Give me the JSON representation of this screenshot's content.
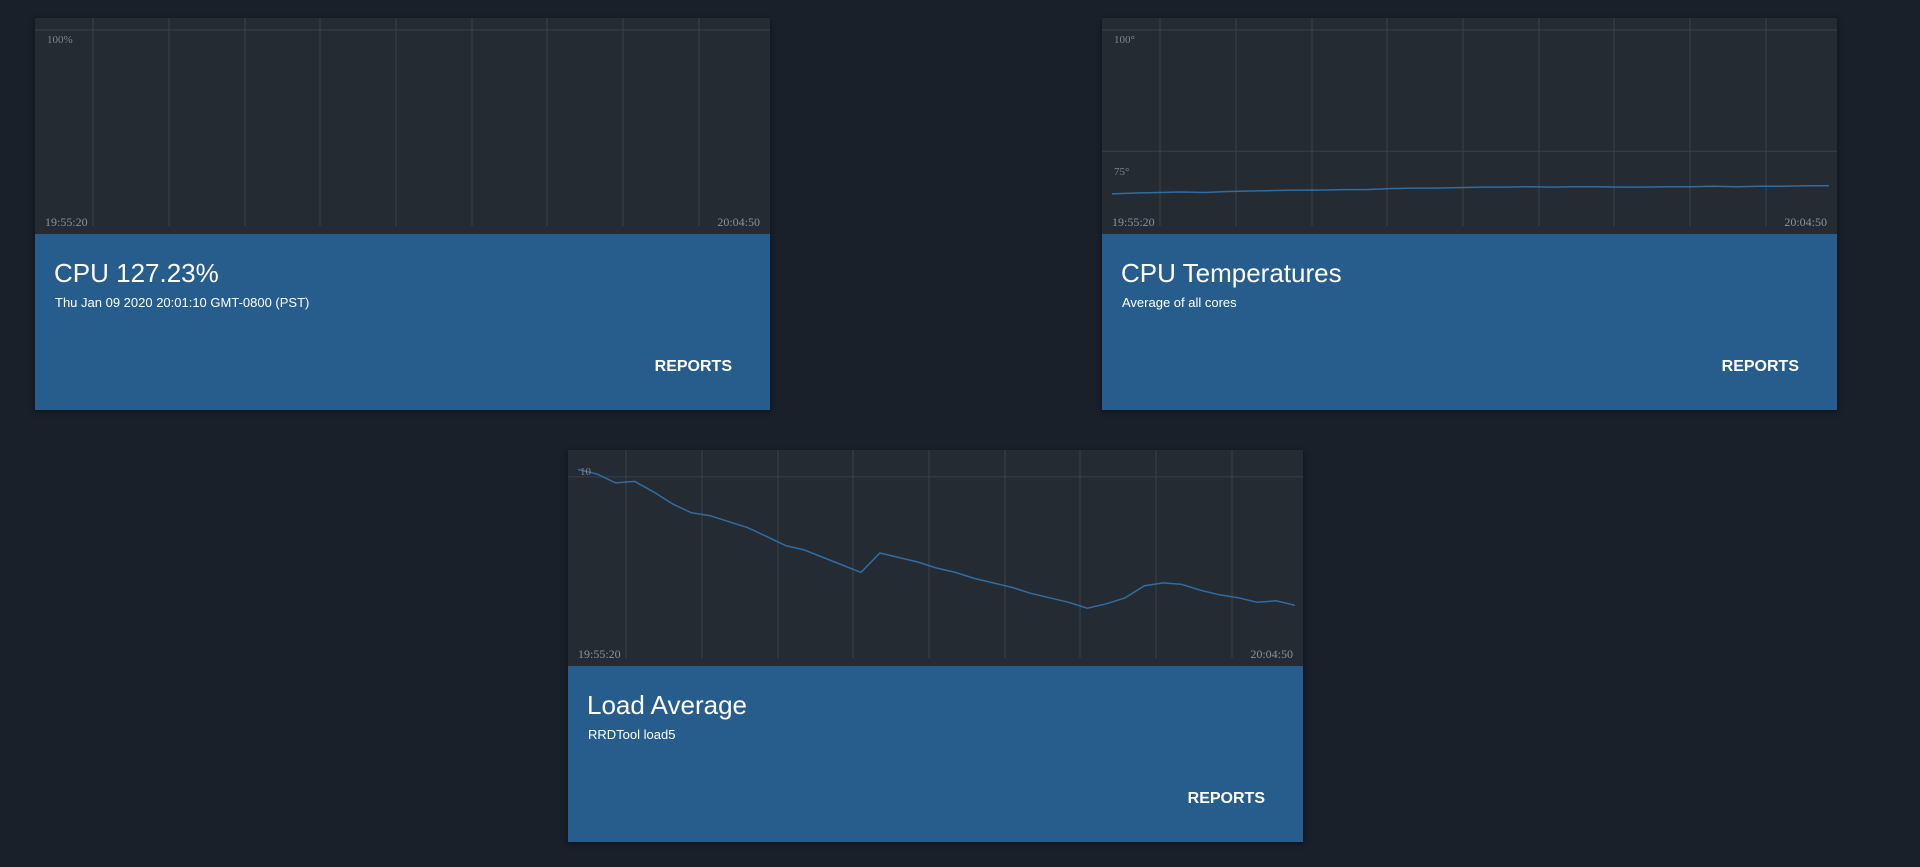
{
  "cards": [
    {
      "id": "cpu",
      "title": "CPU 127.23%",
      "subtitle": "Thu Jan 09 2020 20:01:10 GMT-0800 (PST)",
      "reports_label": "REPORTS",
      "chart": {
        "y_labels": [
          "100%"
        ],
        "x_start": "19:55:20",
        "x_end": "20:04:50"
      }
    },
    {
      "id": "temp",
      "title": "CPU Temperatures",
      "subtitle": "Average of all cores",
      "reports_label": "REPORTS",
      "chart": {
        "y_labels": [
          "100°",
          "75°"
        ],
        "x_start": "19:55:20",
        "x_end": "20:04:50"
      }
    },
    {
      "id": "load",
      "title": "Load Average",
      "subtitle": "RRDTool load5",
      "reports_label": "REPORTS",
      "chart": {
        "y_labels": [
          "10"
        ],
        "x_start": "19:55:20",
        "x_end": "20:04:50"
      }
    }
  ],
  "colors": {
    "background": "#19202a",
    "card": "#265d8c",
    "chart_bg": "#252b33",
    "grid": "#3a414a",
    "line": "#2f6da3"
  },
  "chart_data": [
    {
      "type": "line",
      "title": "",
      "x_ticks": [
        "19:55:20",
        "20:04:50"
      ],
      "y_ticks": [
        100
      ],
      "ylim": [
        0,
        100
      ],
      "series": [
        {
          "values": []
        }
      ]
    },
    {
      "type": "line",
      "title": "",
      "x_ticks": [
        "19:55:20",
        "20:04:50"
      ],
      "y_ticks": [
        75,
        100
      ],
      "ylim": [
        60,
        100
      ],
      "series": [
        {
          "values": [
            66.2,
            66.4,
            66.5,
            66.6,
            66.5,
            66.7,
            66.8,
            66.9,
            67.0,
            67.0,
            67.1,
            67.1,
            67.3,
            67.4,
            67.4,
            67.5,
            67.6,
            67.6,
            67.7,
            67.6,
            67.7,
            67.7,
            67.6,
            67.6,
            67.7,
            67.7,
            67.8,
            67.7,
            67.8,
            67.8,
            67.9,
            67.9
          ]
        }
      ]
    },
    {
      "type": "line",
      "title": "",
      "x_ticks": [
        "19:55:20",
        "20:04:50"
      ],
      "y_ticks": [
        10
      ],
      "ylim": [
        4,
        10.5
      ],
      "series": [
        {
          "values": [
            10.25,
            10.1,
            9.8,
            9.85,
            9.5,
            9.1,
            8.8,
            8.7,
            8.5,
            8.3,
            8.0,
            7.7,
            7.55,
            7.3,
            7.05,
            6.8,
            7.45,
            7.3,
            7.15,
            6.95,
            6.8,
            6.6,
            6.45,
            6.3,
            6.1,
            5.95,
            5.8,
            5.6,
            5.75,
            5.95,
            6.35,
            6.45,
            6.4,
            6.2,
            6.05,
            5.95,
            5.8,
            5.85,
            5.7
          ]
        }
      ]
    }
  ]
}
